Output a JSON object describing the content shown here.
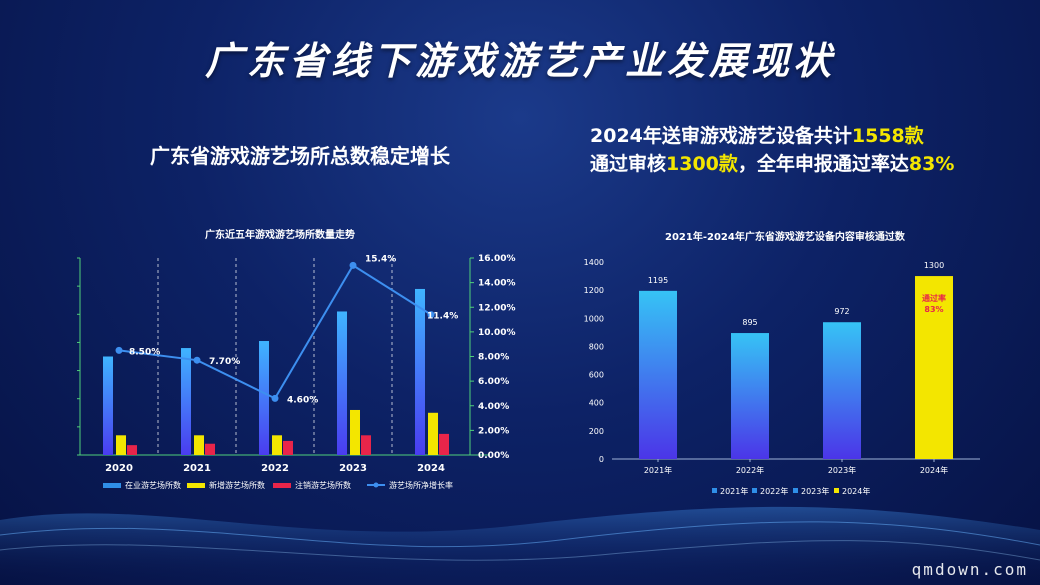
{
  "slide": {
    "title": "广东省线下游戏游艺产业发展现状",
    "left_heading": "广东省游戏游艺场所总数稳定增长",
    "right_heading_line1_a": "2024年送审游戏游艺设备共计",
    "right_heading_line1_b": "1558款",
    "right_heading_line2_a": "通过审核",
    "right_heading_line2_b": "1300款",
    "right_heading_line2_c": "，全年申报通过率达",
    "right_heading_line2_d": "83%",
    "watermark": "qmdown.com"
  },
  "colors": {
    "highlight": "#f3e600",
    "blue_bar": "#2f8fe8",
    "yellow_bar": "#f3e600",
    "red_bar": "#e8254a",
    "line": "#3d8ff0"
  },
  "chart_data": [
    {
      "type": "bar",
      "title": "广东近五年游戏游艺场所数量走势",
      "categories": [
        "2020",
        "2021",
        "2022",
        "2023",
        "2024"
      ],
      "y2_ticks": [
        "0.00%",
        "2.00%",
        "4.00%",
        "6.00%",
        "8.00%",
        "10.00%",
        "12.00%",
        "14.00%",
        "16.00%"
      ],
      "y2lim": [
        0,
        16
      ],
      "series": [
        {
          "name": "在业游艺场所数",
          "kind": "bar",
          "axis": "left",
          "color": "#2f8fe8",
          "values": [
            7.0,
            7.6,
            8.1,
            10.2,
            11.8
          ]
        },
        {
          "name": "新增游艺场所数",
          "kind": "bar",
          "axis": "left",
          "color": "#f3e600",
          "values": [
            1.4,
            1.4,
            1.4,
            3.2,
            3.0
          ]
        },
        {
          "name": "注销游艺场所数",
          "kind": "bar",
          "axis": "left",
          "color": "#e8254a",
          "values": [
            0.7,
            0.8,
            1.0,
            1.4,
            1.5
          ]
        },
        {
          "name": "游艺场所净增长率",
          "kind": "line",
          "axis": "right",
          "color": "#3d8ff0",
          "values": [
            8.5,
            7.7,
            4.6,
            15.4,
            11.4
          ],
          "labels": [
            "8.50%",
            "7.70%",
            "4.60%",
            "15.4%",
            "11.4%"
          ]
        }
      ],
      "legend": [
        "在业游艺场所数",
        "新增游艺场所数",
        "注销游艺场所数",
        "游艺场所净增长率"
      ],
      "legend_position": "bottom",
      "grid": false
    },
    {
      "type": "bar",
      "title": "2021年-2024年广东省游戏游艺设备内容审核通过数",
      "categories": [
        "2021年",
        "2022年",
        "2023年",
        "2024年"
      ],
      "values": [
        1195,
        895,
        972,
        1300
      ],
      "value_labels": [
        "1195",
        "895",
        "972",
        "1300"
      ],
      "colors": [
        "#2f8fe8",
        "#2f8fe8",
        "#2f8fe8",
        "#f3e600"
      ],
      "annotation": {
        "category": "2024年",
        "line1": "通过率",
        "line2": "83%"
      },
      "y_ticks": [
        0,
        200,
        400,
        600,
        800,
        1000,
        1200,
        1400
      ],
      "ylim": [
        0,
        1400
      ],
      "legend": [
        "2021年",
        "2022年",
        "2023年",
        "2024年"
      ],
      "legend_position": "bottom",
      "grid": false
    }
  ]
}
